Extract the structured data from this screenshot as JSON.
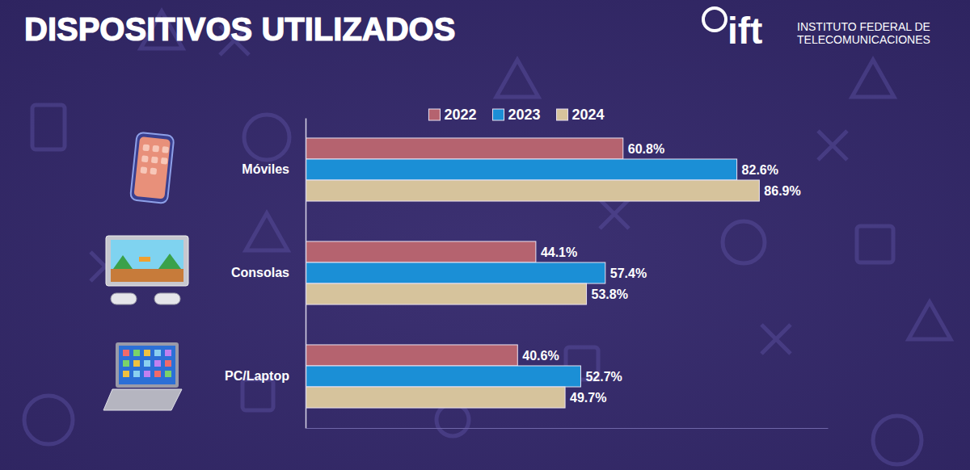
{
  "chart_data": {
    "type": "bar",
    "orientation": "horizontal",
    "title": "DISPOSITIVOS UTILIZADOS",
    "annotations": [
      "ift",
      "INSTITUTO FEDERAL DE",
      "TELECOMUNICACIONES"
    ],
    "categories": [
      "Móviles",
      "Consolas",
      "PC/Laptop"
    ],
    "series": [
      {
        "name": "2022",
        "color": "#b5636f",
        "values": [
          60.8,
          44.1,
          40.6
        ],
        "value_labels": [
          "60.8%",
          "44.1%",
          "40.6%"
        ]
      },
      {
        "name": "2023",
        "color": "#1b8fd6",
        "values": [
          82.6,
          57.4,
          52.7
        ],
        "value_labels": [
          "82.6%",
          "57.4%",
          "52.7%"
        ]
      },
      {
        "name": "2024",
        "color": "#d6c39c",
        "values": [
          86.9,
          53.8,
          49.7
        ],
        "value_labels": [
          "86.9%",
          "53.8%",
          "49.7%"
        ]
      }
    ],
    "xlim": [
      0,
      100
    ],
    "xticks": [],
    "tick_labels": "y",
    "legend": "top",
    "data_labels": true,
    "grid": false
  }
}
